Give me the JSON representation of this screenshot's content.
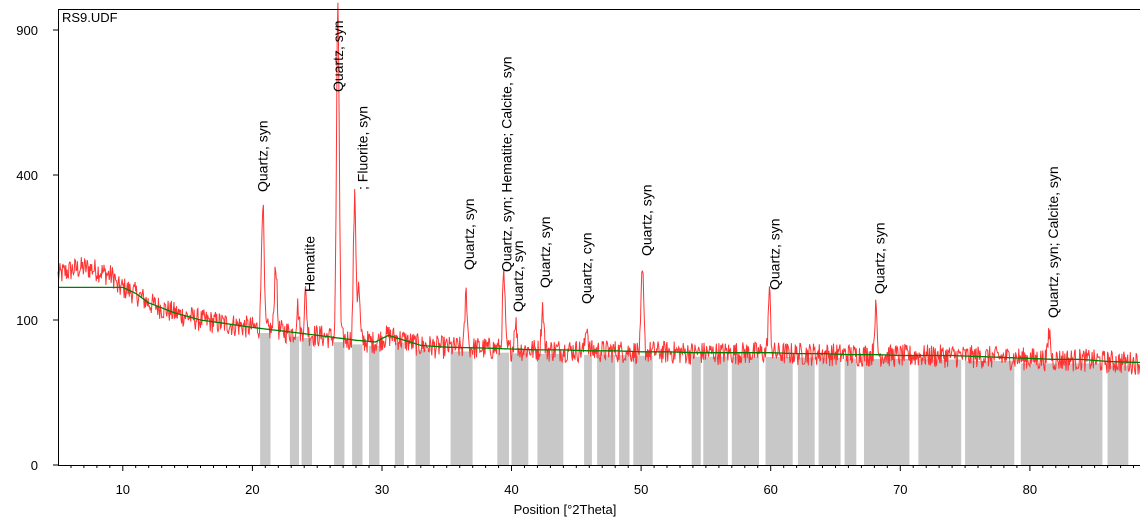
{
  "chart_data": {
    "type": "line",
    "title": "RS9.UDF",
    "xlabel": "Position [°2Theta]",
    "ylabel": "",
    "xlim": [
      5,
      88.5
    ],
    "y_scale": "sqrt",
    "ylim": [
      0,
      1000
    ],
    "x_ticks": [
      10,
      20,
      30,
      40,
      50,
      60,
      70,
      80
    ],
    "x_tick_labels": [
      "10",
      "20",
      "30",
      "40",
      "50",
      "60",
      "70",
      "80"
    ],
    "y_ticks": [
      0,
      100,
      400,
      900
    ],
    "y_tick_labels": [
      "0",
      "100",
      "400",
      "900"
    ],
    "colors": {
      "pattern": "#ff3333",
      "background": "#008000",
      "bars": "#c8c8c8"
    },
    "background": {
      "name": "",
      "x": [
        5,
        10,
        11,
        12,
        14,
        16,
        18,
        20,
        22,
        24,
        26,
        28,
        29.5,
        30.5,
        31.5,
        33,
        35,
        38,
        40,
        42,
        44,
        46,
        48,
        50,
        52,
        54,
        56,
        58,
        60,
        62,
        64,
        66,
        68,
        70,
        72,
        74,
        76,
        78,
        80,
        82,
        84,
        86,
        88.5
      ],
      "y": [
        150,
        150,
        140,
        125,
        110,
        100,
        95,
        90,
        86,
        82,
        78,
        74,
        72,
        80,
        75,
        68,
        66,
        65,
        64,
        63,
        63,
        62,
        62,
        61,
        61,
        60,
        60,
        60,
        60,
        59,
        59,
        58,
        58,
        57,
        57,
        57,
        56,
        55,
        54,
        53,
        53,
        51,
        50
      ]
    },
    "pattern": {
      "name": "",
      "peaks": [
        {
          "x": 20.8,
          "y": 330
        },
        {
          "x": 21.8,
          "y": 195
        },
        {
          "x": 23.5,
          "y": 120
        },
        {
          "x": 24.1,
          "y": 140
        },
        {
          "x": 26.6,
          "y": 970
        },
        {
          "x": 27.9,
          "y": 335
        },
        {
          "x": 28.2,
          "y": 150
        },
        {
          "x": 36.5,
          "y": 140
        },
        {
          "x": 39.4,
          "y": 170
        },
        {
          "x": 40.3,
          "y": 100
        },
        {
          "x": 42.4,
          "y": 120
        },
        {
          "x": 45.8,
          "y": 95
        },
        {
          "x": 50.1,
          "y": 175
        },
        {
          "x": 59.9,
          "y": 140
        },
        {
          "x": 68.1,
          "y": 115
        },
        {
          "x": 81.5,
          "y": 85
        }
      ]
    },
    "bars": [
      {
        "start": 20.6,
        "end": 21.4
      },
      {
        "start": 22.9,
        "end": 23.6
      },
      {
        "start": 23.8,
        "end": 24.6
      },
      {
        "start": 26.3,
        "end": 27.1
      },
      {
        "start": 27.7,
        "end": 28.5
      },
      {
        "start": 29.0,
        "end": 29.8
      },
      {
        "start": 31.0,
        "end": 31.7
      },
      {
        "start": 32.6,
        "end": 33.7
      },
      {
        "start": 35.3,
        "end": 37.0
      },
      {
        "start": 38.9,
        "end": 39.8
      },
      {
        "start": 40.0,
        "end": 41.3
      },
      {
        "start": 42.0,
        "end": 44.0
      },
      {
        "start": 45.6,
        "end": 46.2
      },
      {
        "start": 46.6,
        "end": 48.0
      },
      {
        "start": 48.3,
        "end": 49.1
      },
      {
        "start": 49.4,
        "end": 50.9
      },
      {
        "start": 53.9,
        "end": 54.6
      },
      {
        "start": 54.8,
        "end": 56.7
      },
      {
        "start": 57.0,
        "end": 59.1
      },
      {
        "start": 59.6,
        "end": 61.7
      },
      {
        "start": 62.1,
        "end": 63.4
      },
      {
        "start": 63.7,
        "end": 65.4
      },
      {
        "start": 65.7,
        "end": 66.6
      },
      {
        "start": 67.2,
        "end": 70.7
      },
      {
        "start": 71.4,
        "end": 74.7
      },
      {
        "start": 75.0,
        "end": 78.8
      },
      {
        "start": 79.3,
        "end": 85.6
      },
      {
        "start": 86.0,
        "end": 87.6
      }
    ],
    "annotations": [
      {
        "text": "Quartz, syn",
        "x": 20.8
      },
      {
        "text": "Hematite",
        "x": 24.4
      },
      {
        "text": "Quartz, syn",
        "x": 26.6
      },
      {
        "text": "; Fluorite, syn",
        "x": 28.5
      },
      {
        "text": "Quartz, syn",
        "x": 36.7
      },
      {
        "text": "Quartz, syn; Hematite; Calcite, syn",
        "x": 39.6
      },
      {
        "text": "Quartz, syn",
        "x": 40.5
      },
      {
        "text": "Quartz, syn",
        "x": 42.6
      },
      {
        "text": "Quartz, cyn",
        "x": 45.8
      },
      {
        "text": "Quartz, syn",
        "x": 50.4
      },
      {
        "text": "Quartz, syn",
        "x": 60.3
      },
      {
        "text": "Quartz, syn",
        "x": 68.4
      },
      {
        "text": "Quartz, syn; Calcite, syn",
        "x": 81.8
      }
    ]
  }
}
